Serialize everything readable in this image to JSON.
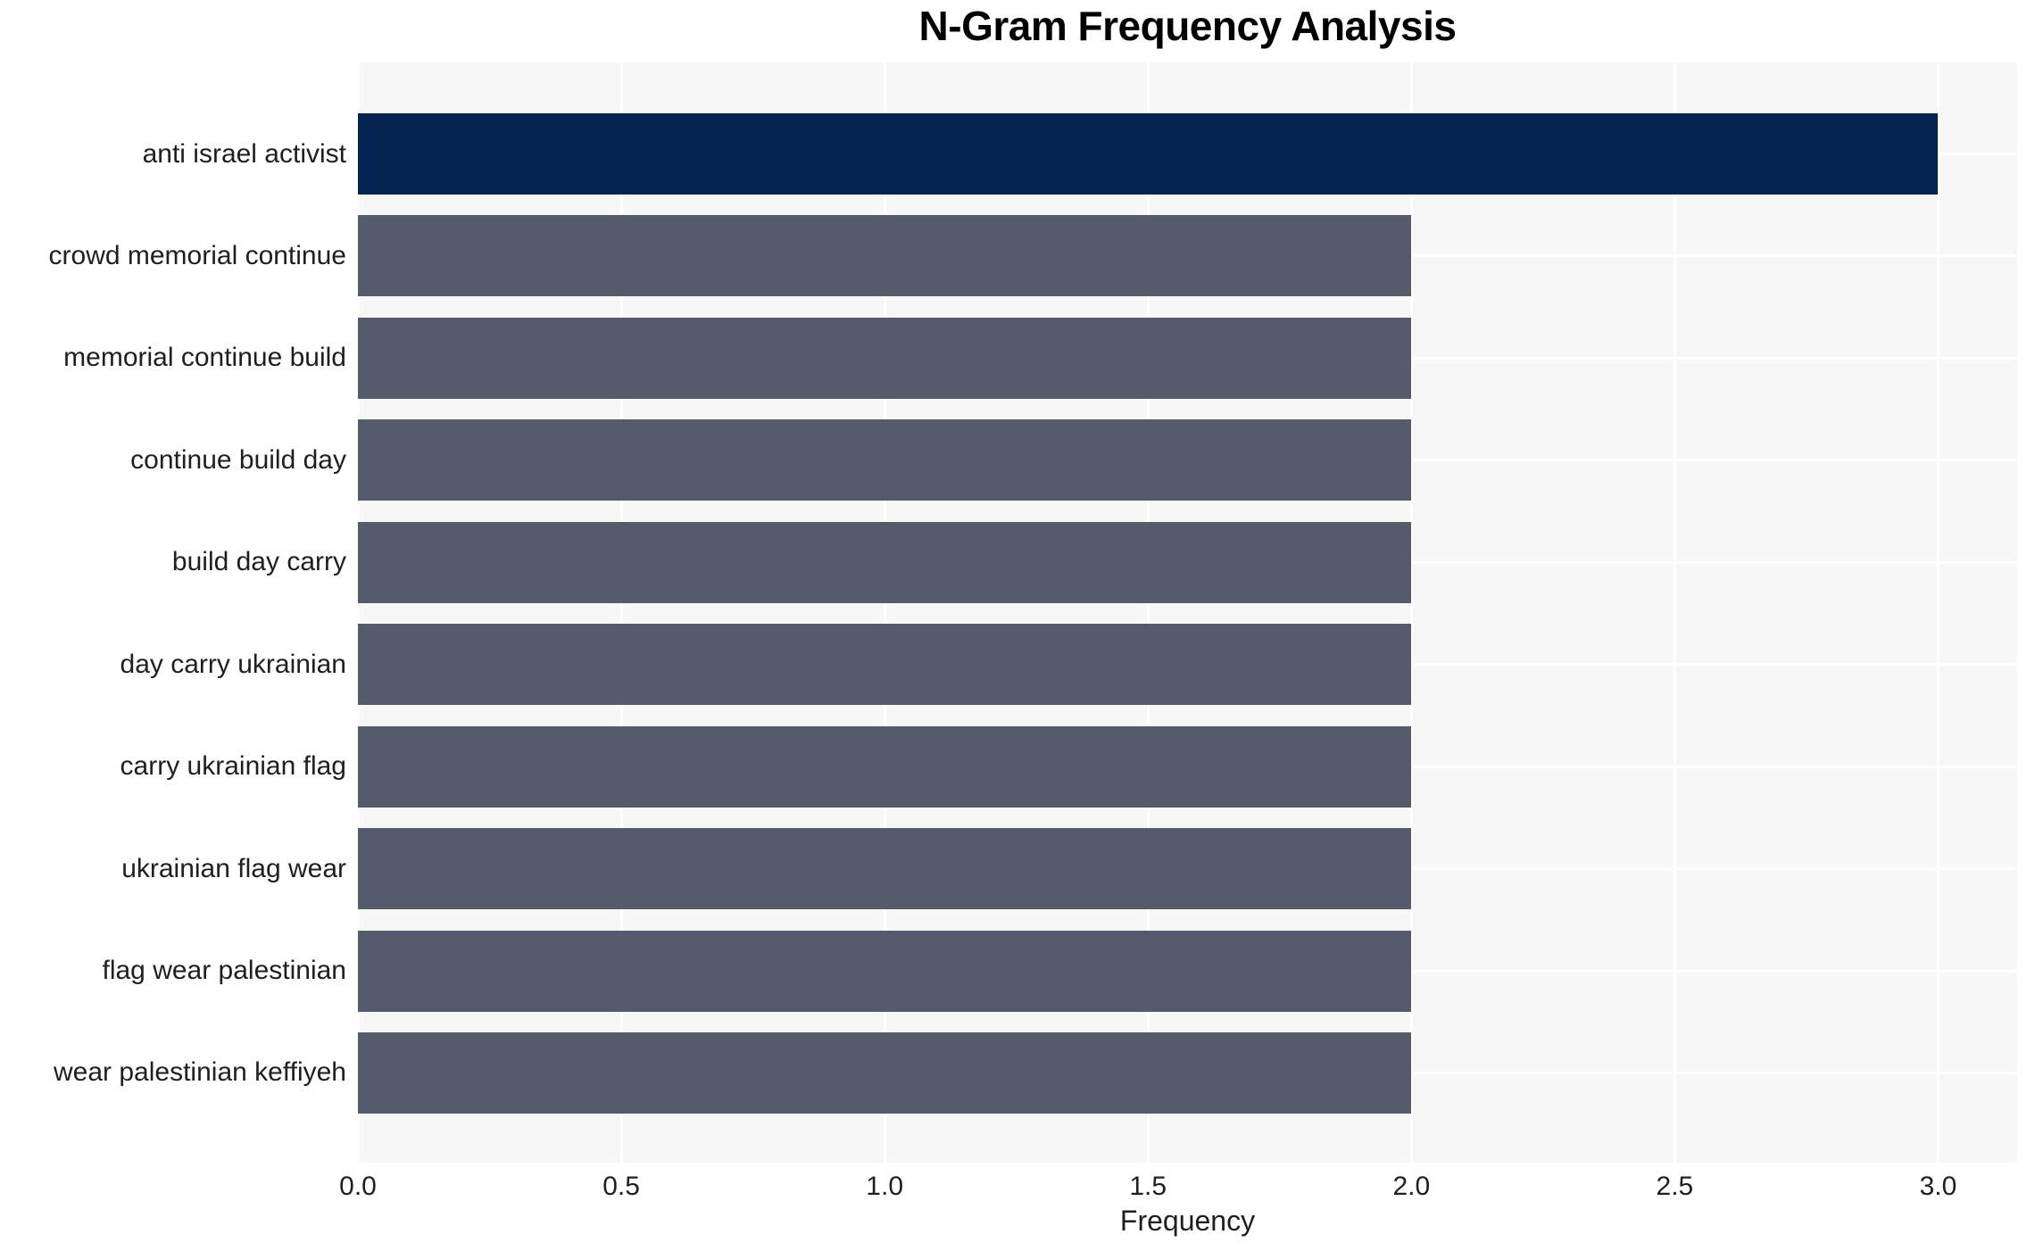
{
  "chart_data": {
    "type": "bar",
    "orientation": "horizontal",
    "title": "N-Gram Frequency Analysis",
    "xlabel": "Frequency",
    "ylabel": "",
    "categories": [
      "anti israel activist",
      "crowd memorial continue",
      "memorial continue build",
      "continue build day",
      "build day carry",
      "day carry ukrainian",
      "carry ukrainian flag",
      "ukrainian flag wear",
      "flag wear palestinian",
      "wear palestinian keffiyeh"
    ],
    "values": [
      3,
      2,
      2,
      2,
      2,
      2,
      2,
      2,
      2,
      2
    ],
    "bar_colors": [
      "#02244E",
      "#565B6B",
      "#565B6B",
      "#565B6B",
      "#565B6B",
      "#565B6B",
      "#565B6B",
      "#565B6B",
      "#565B6B",
      "#565B6B"
    ],
    "xlim": [
      0,
      3.15
    ],
    "xtick_values": [
      0,
      0.5,
      1,
      1.5,
      2,
      2.5,
      3
    ],
    "xtick_labels": [
      "0.0",
      "0.5",
      "1.0",
      "1.5",
      "2.0",
      "2.5",
      "3.0"
    ],
    "grid": true,
    "legend_position": "none",
    "colors": {
      "bar_highlight": "#02244E",
      "bar_default": "#565B6B",
      "plot_background": "#F7F7F7",
      "gridline": "#FFFFFF",
      "figure_background": "#FFFFFF",
      "text": "#1F1F1F",
      "title_text": "#000000"
    }
  }
}
